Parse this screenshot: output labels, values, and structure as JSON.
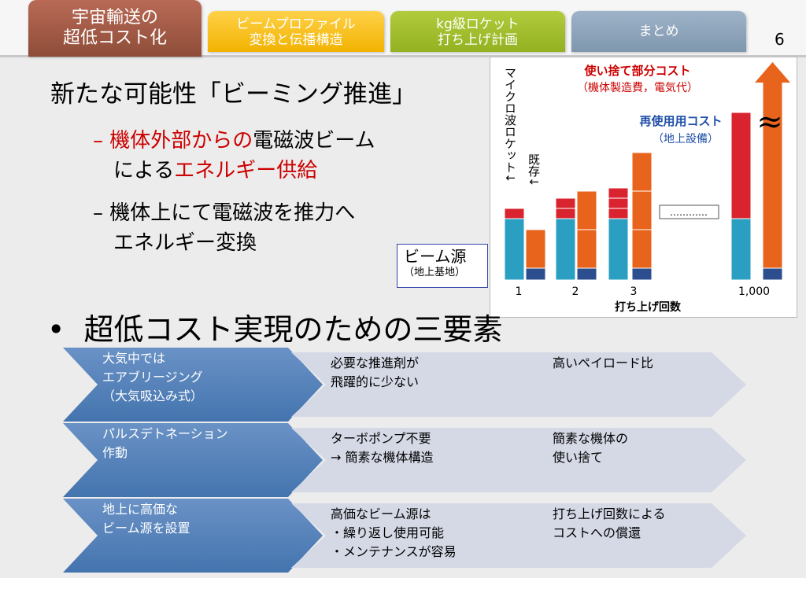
{
  "header": {
    "tabs": [
      {
        "line1": "宇宙輸送の",
        "line2": "超低コスト化"
      },
      {
        "line1": "ビームプロファイル",
        "line2": "変換と伝播構造"
      },
      {
        "line1": "kg級ロケット",
        "line2": "打ち上げ計画"
      },
      {
        "line1": "まとめ",
        "line2": ""
      }
    ],
    "page_number": "6"
  },
  "title": "新たな可能性「ビーミング推進」",
  "bullets": [
    {
      "dash": "–",
      "red1": "機体外部からの",
      "text1": "電磁波ビーム",
      "text2": "による",
      "red2": "エネルギー供給"
    },
    {
      "dash": "–",
      "line1": "機体上にて電磁波を推力へ",
      "line2": "エネルギー変換"
    }
  ],
  "beam_box": {
    "line1": "ビーム源",
    "line2": "（地上基地）"
  },
  "main_bullet": {
    "marker": "•",
    "text": "超低コスト実現のための三要素"
  },
  "chart": {
    "vertical_label": "マイクロ波ロケット↓",
    "existing_label": "既存↓",
    "legend_disposable_1": "使い捨て部分コスト",
    "legend_disposable_2": "（機体製造費，電気代）",
    "legend_reuse_1": "再使用用コスト",
    "legend_reuse_2": "（地上設備）",
    "ellipsis": "…………",
    "approx_sign": "≈",
    "xlabel": "打ち上げ回数",
    "colors": {
      "red": "#d9232f",
      "teal": "#2a9fc2",
      "orange": "#e8631c",
      "navy": "#2c4e8e"
    }
  },
  "chart_data": {
    "type": "bar",
    "xlabel": "打ち上げ回数",
    "categories": [
      "1",
      "2",
      "3",
      "1,000"
    ],
    "series": [
      {
        "name": "マイクロ波ロケット",
        "values": [
          1,
          1,
          1,
          1
        ]
      },
      {
        "name": "既存",
        "values": [
          1,
          2,
          3,
          1000
        ]
      }
    ]
  },
  "flow_rows": [
    {
      "a": [
        "大気中では",
        "エアブリージング",
        "（大気吸込み式）"
      ],
      "b": [
        "必要な推進剤が",
        "飛躍的に少ない"
      ],
      "c": [
        "高いペイロード比"
      ]
    },
    {
      "a": [
        "パルスデトネーション",
        "作動"
      ],
      "b": [
        "ターボポンプ不要",
        "→ 簡素な機体構造"
      ],
      "c": [
        "簡素な機体の",
        "使い捨て"
      ]
    },
    {
      "a": [
        "地上に高価な",
        "ビーム源を設置"
      ],
      "b": [
        "高価なビーム源は",
        "・繰り返し使用可能",
        "・メンテナンスが容易"
      ],
      "c": [
        "打ち上げ回数による",
        "コストへの償還"
      ]
    }
  ]
}
